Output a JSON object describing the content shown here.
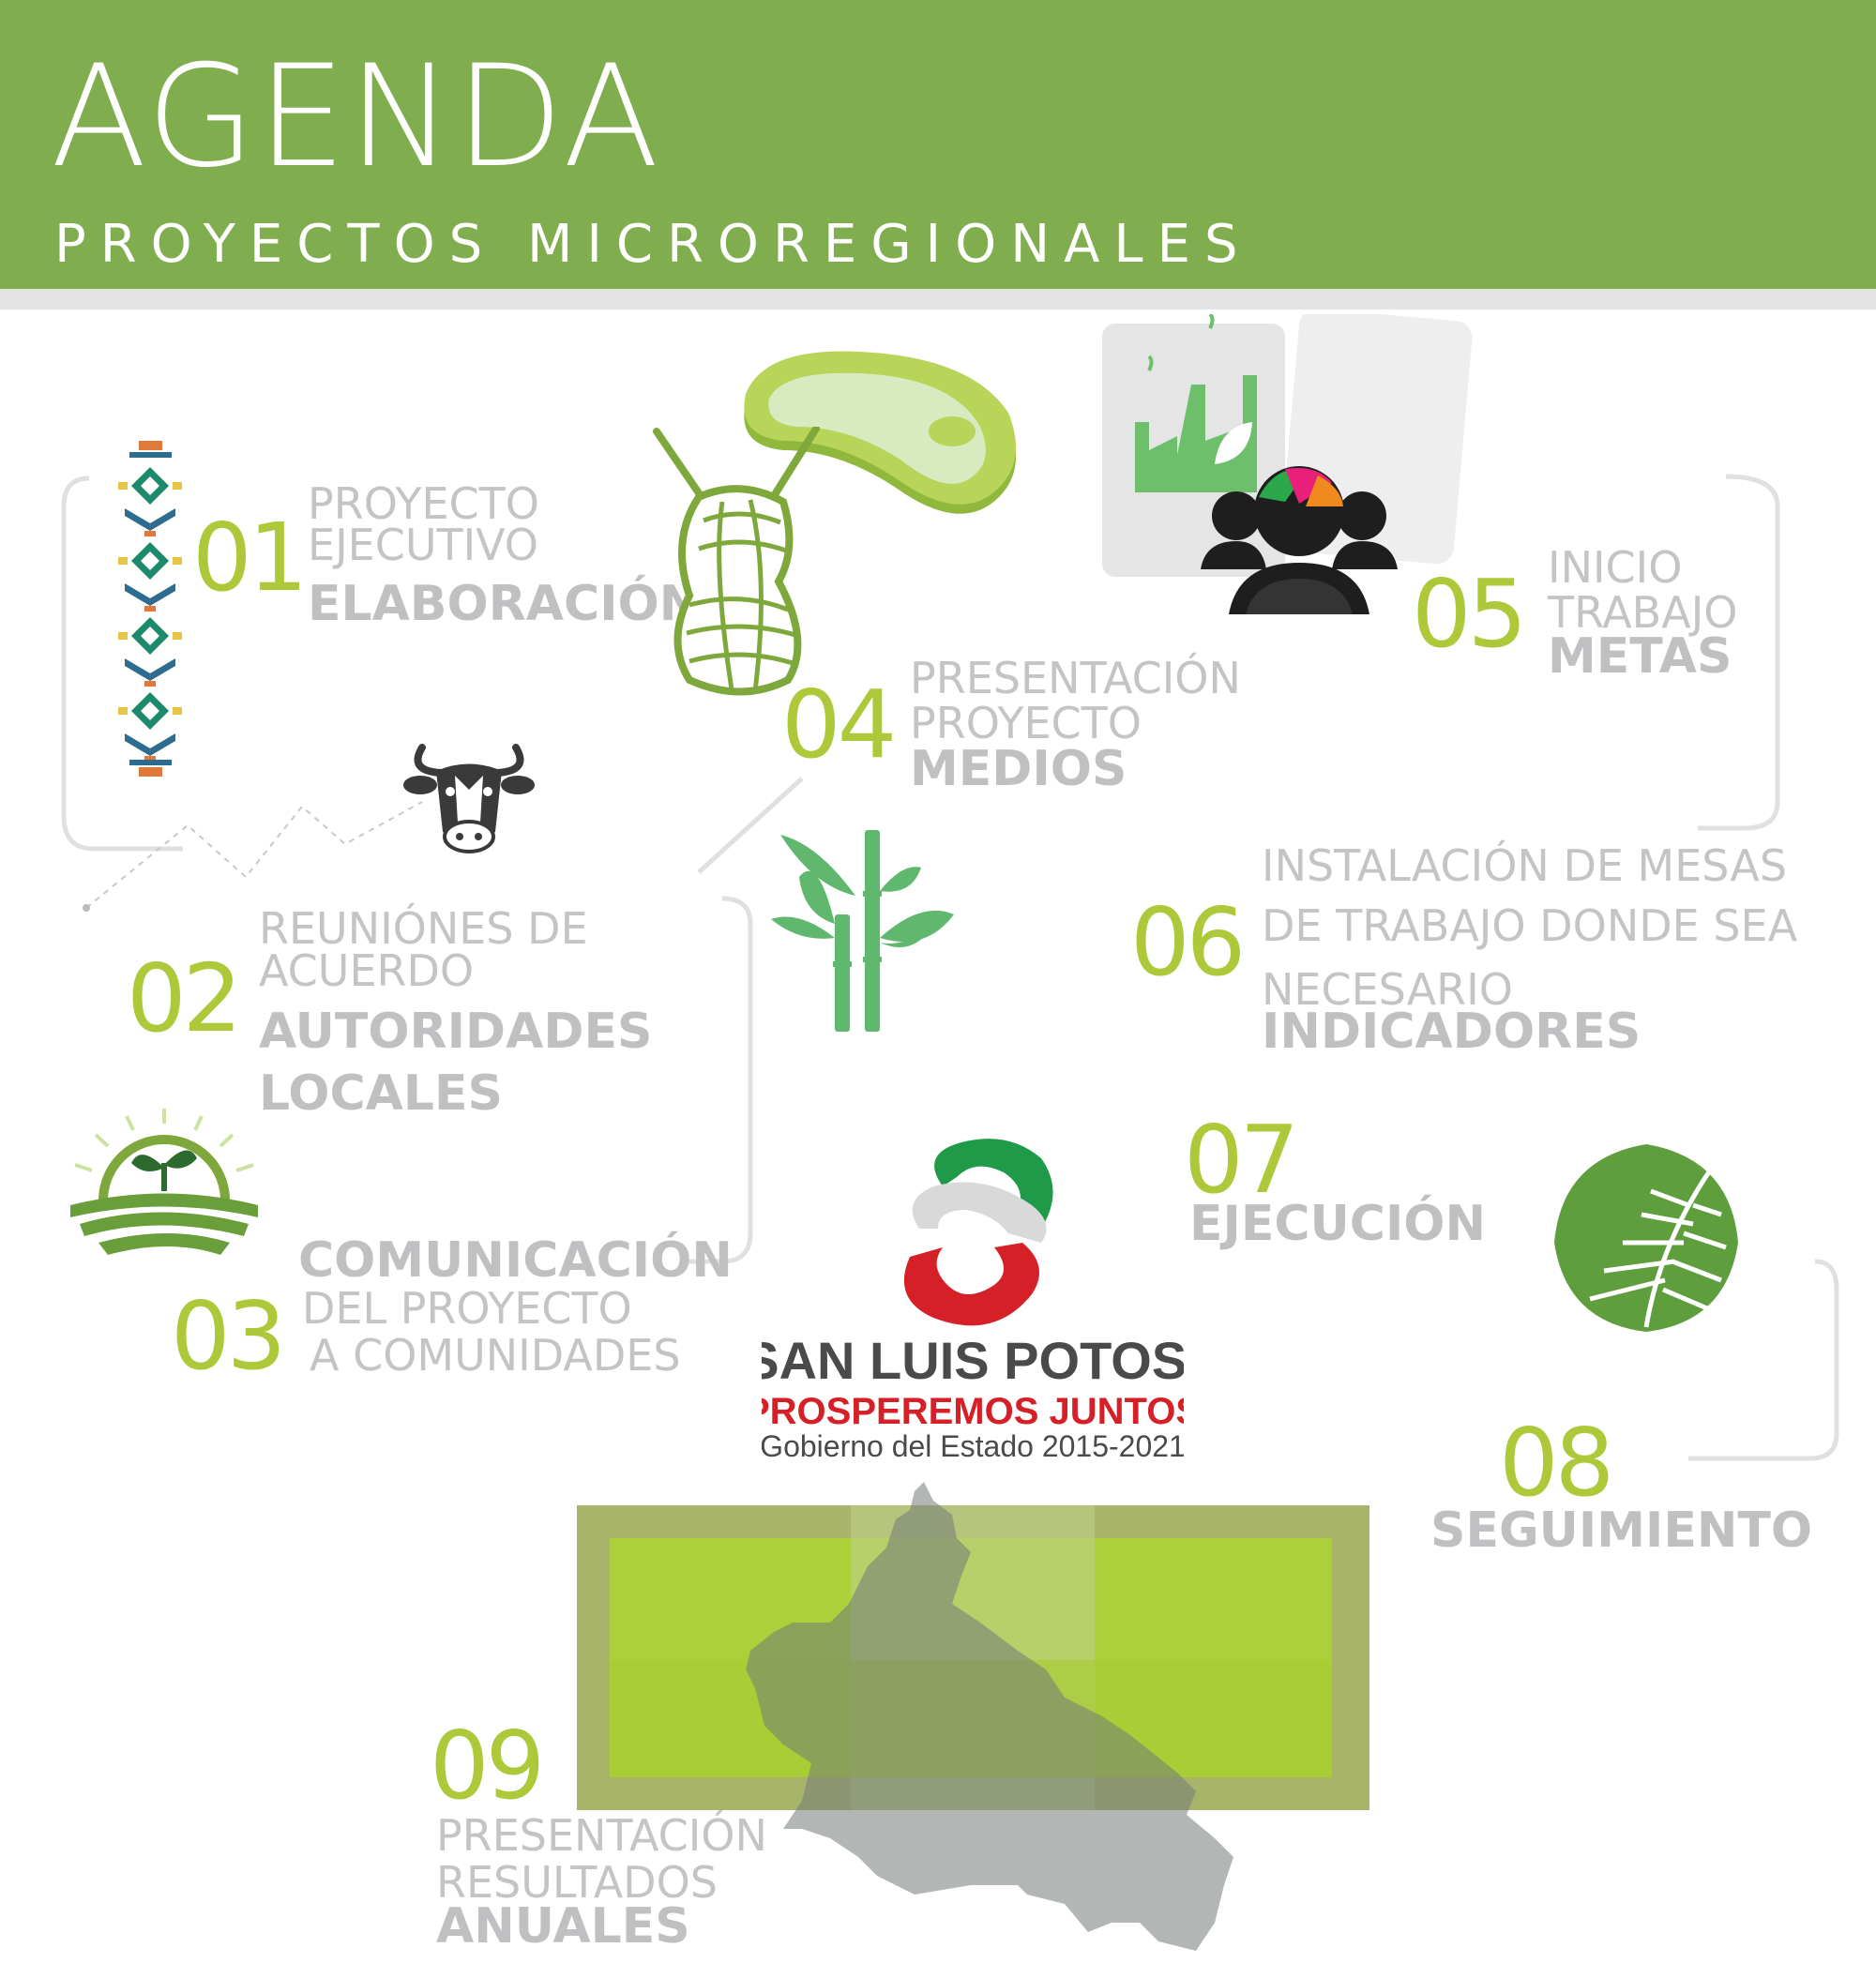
{
  "header": {
    "title": "AGENDA",
    "subtitle": "PROYECTOS MICROREGIONALES",
    "background_color": "#80ae4f"
  },
  "steps": [
    {
      "number": "01",
      "lines": [
        "PROYECTO",
        "EJECUTIVO"
      ],
      "bold": [
        "ELABORACIÓN"
      ]
    },
    {
      "number": "02",
      "lines": [
        "REUNIÓNES DE",
        "ACUERDO"
      ],
      "bold": [
        "AUTORIDADES",
        "LOCALES"
      ]
    },
    {
      "number": "03",
      "bold": [
        "COMUNICACIÓN"
      ],
      "lines": [
        "DEL PROYECTO",
        "A COMUNIDADES"
      ]
    },
    {
      "number": "04",
      "lines": [
        "PRESENTACIÓN",
        "PROYECTO"
      ],
      "bold": [
        "MEDIOS"
      ]
    },
    {
      "number": "05",
      "lines": [
        "INICIO",
        "TRABAJO"
      ],
      "bold": [
        "METAS"
      ]
    },
    {
      "number": "06",
      "lines": [
        "INSTALACIÓN DE MESAS",
        "DE TRABAJO DONDE SEA",
        "NECESARIO"
      ],
      "bold": [
        "INDICADORES"
      ]
    },
    {
      "number": "07",
      "bold": [
        "EJECUCIÓN"
      ]
    },
    {
      "number": "08",
      "bold": [
        "SEGUIMIENTO"
      ]
    },
    {
      "number": "09",
      "lines": [
        "PRESENTACIÓN",
        "RESULTADOS"
      ],
      "bold": [
        "ANUALES"
      ]
    }
  ],
  "logo": {
    "name": "SAN LUIS POTOSÍ",
    "slogan": "PROSPEREMOS JUNTOS",
    "government": "Gobierno del Estado 2015-2021"
  },
  "icons": [
    "textile-pattern-icon",
    "cow-head-icon",
    "yarn-ball-icon",
    "meat-steak-icon",
    "factory-leaf-icon",
    "community-people-icon",
    "bamboo-icon",
    "sprout-field-icon",
    "palm-leaf-icon",
    "state-map-icon"
  ],
  "colors": {
    "accent_green": "#adc93a",
    "label_gray": "#c4c4c7",
    "logo_red": "#d52027",
    "logo_green": "#1e9a48"
  }
}
